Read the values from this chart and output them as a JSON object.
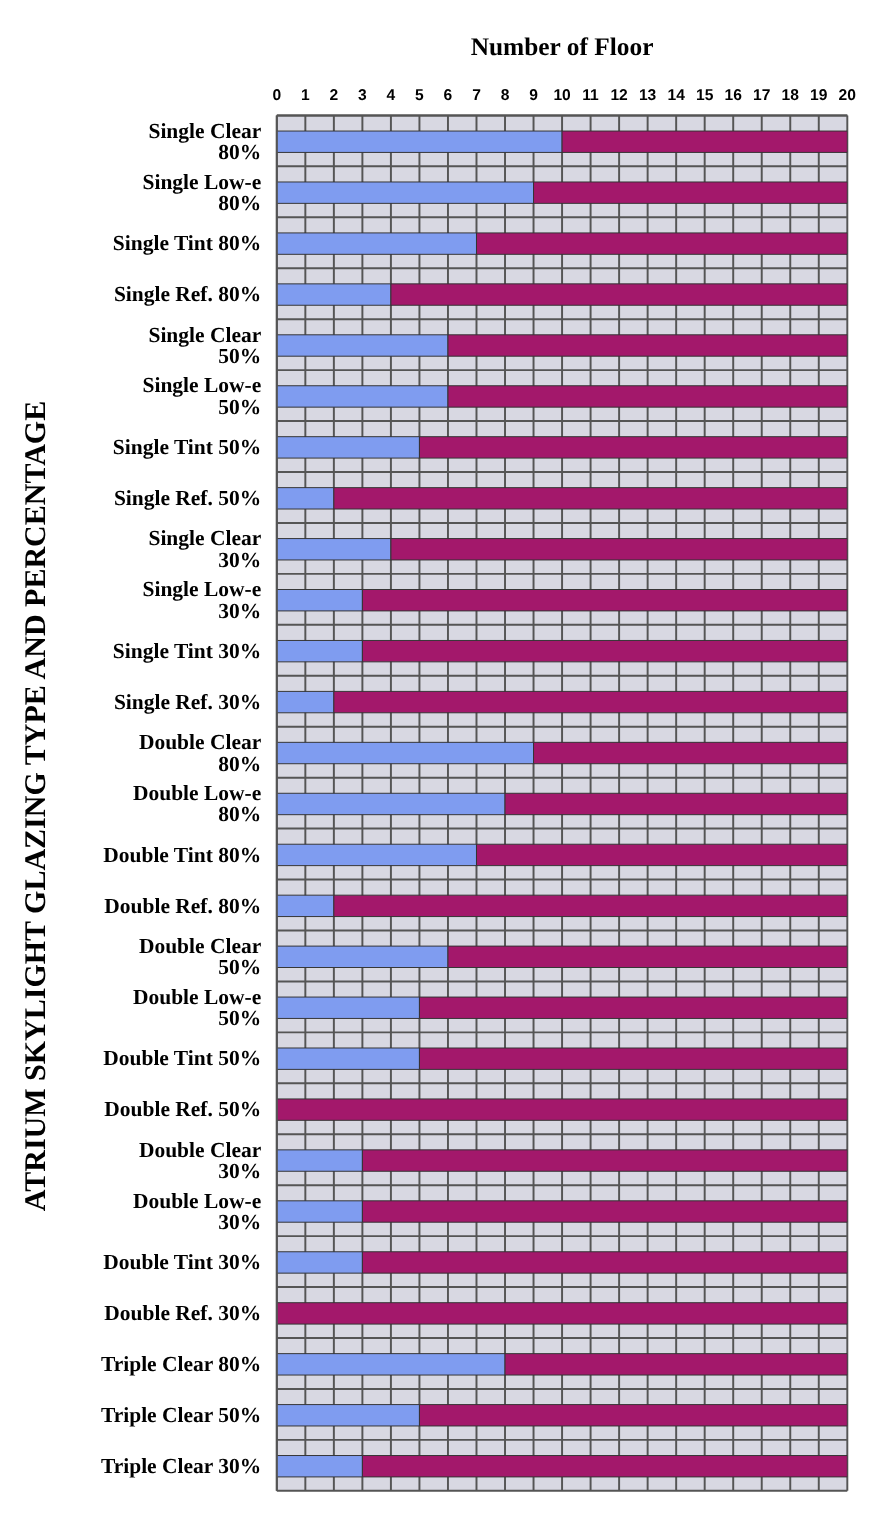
{
  "chart_data": {
    "type": "bar",
    "orientation": "horizontal",
    "stacked": true,
    "xlabel": "Number of Floor",
    "ylabel": "ATRIUM SKYLIGHT GLAZING TYPE AND PERCENTAGE",
    "categories": [
      "Single Clear 80%",
      "Single Low-e 80%",
      "Single Tint 80%",
      "Single Ref. 80%",
      "Single Clear 50%",
      "Single Low-e 50%",
      "Single Tint 50%",
      "Single Ref. 50%",
      "Single Clear 30%",
      "Single Low-e 30%",
      "Single Tint 30%",
      "Single Ref. 30%",
      "Double Clear 80%",
      "Double Low-e 80%",
      "Double Tint 80%",
      "Double Ref. 80%",
      "Double Clear 50%",
      "Double Low-e 50%",
      "Double Tint 50%",
      "Double Ref. 50%",
      "Double Clear 30%",
      "Double Low-e 30%",
      "Double Tint 30%",
      "Double Ref. 30%",
      "Triple Clear 80%",
      "Triple Clear 50%",
      "Triple Clear 30%"
    ],
    "series": [
      {
        "color": "#7f9cf0",
        "values": [
          10,
          9,
          7,
          4,
          6,
          6,
          5,
          2,
          4,
          3,
          3,
          2,
          9,
          8,
          7,
          2,
          6,
          5,
          5,
          0,
          3,
          3,
          3,
          0,
          8,
          5,
          3
        ]
      },
      {
        "color": "#a3186b",
        "values": [
          10,
          11,
          13,
          16,
          14,
          14,
          15,
          18,
          16,
          17,
          17,
          18,
          11,
          12,
          13,
          18,
          14,
          15,
          15,
          20,
          17,
          17,
          17,
          20,
          12,
          15,
          17
        ]
      }
    ],
    "xlim": [
      0,
      20
    ],
    "xticks": [
      0,
      1,
      2,
      3,
      4,
      5,
      6,
      7,
      8,
      9,
      10,
      11,
      12,
      13,
      14,
      15,
      16,
      17,
      18,
      19,
      20
    ],
    "grid": true
  }
}
